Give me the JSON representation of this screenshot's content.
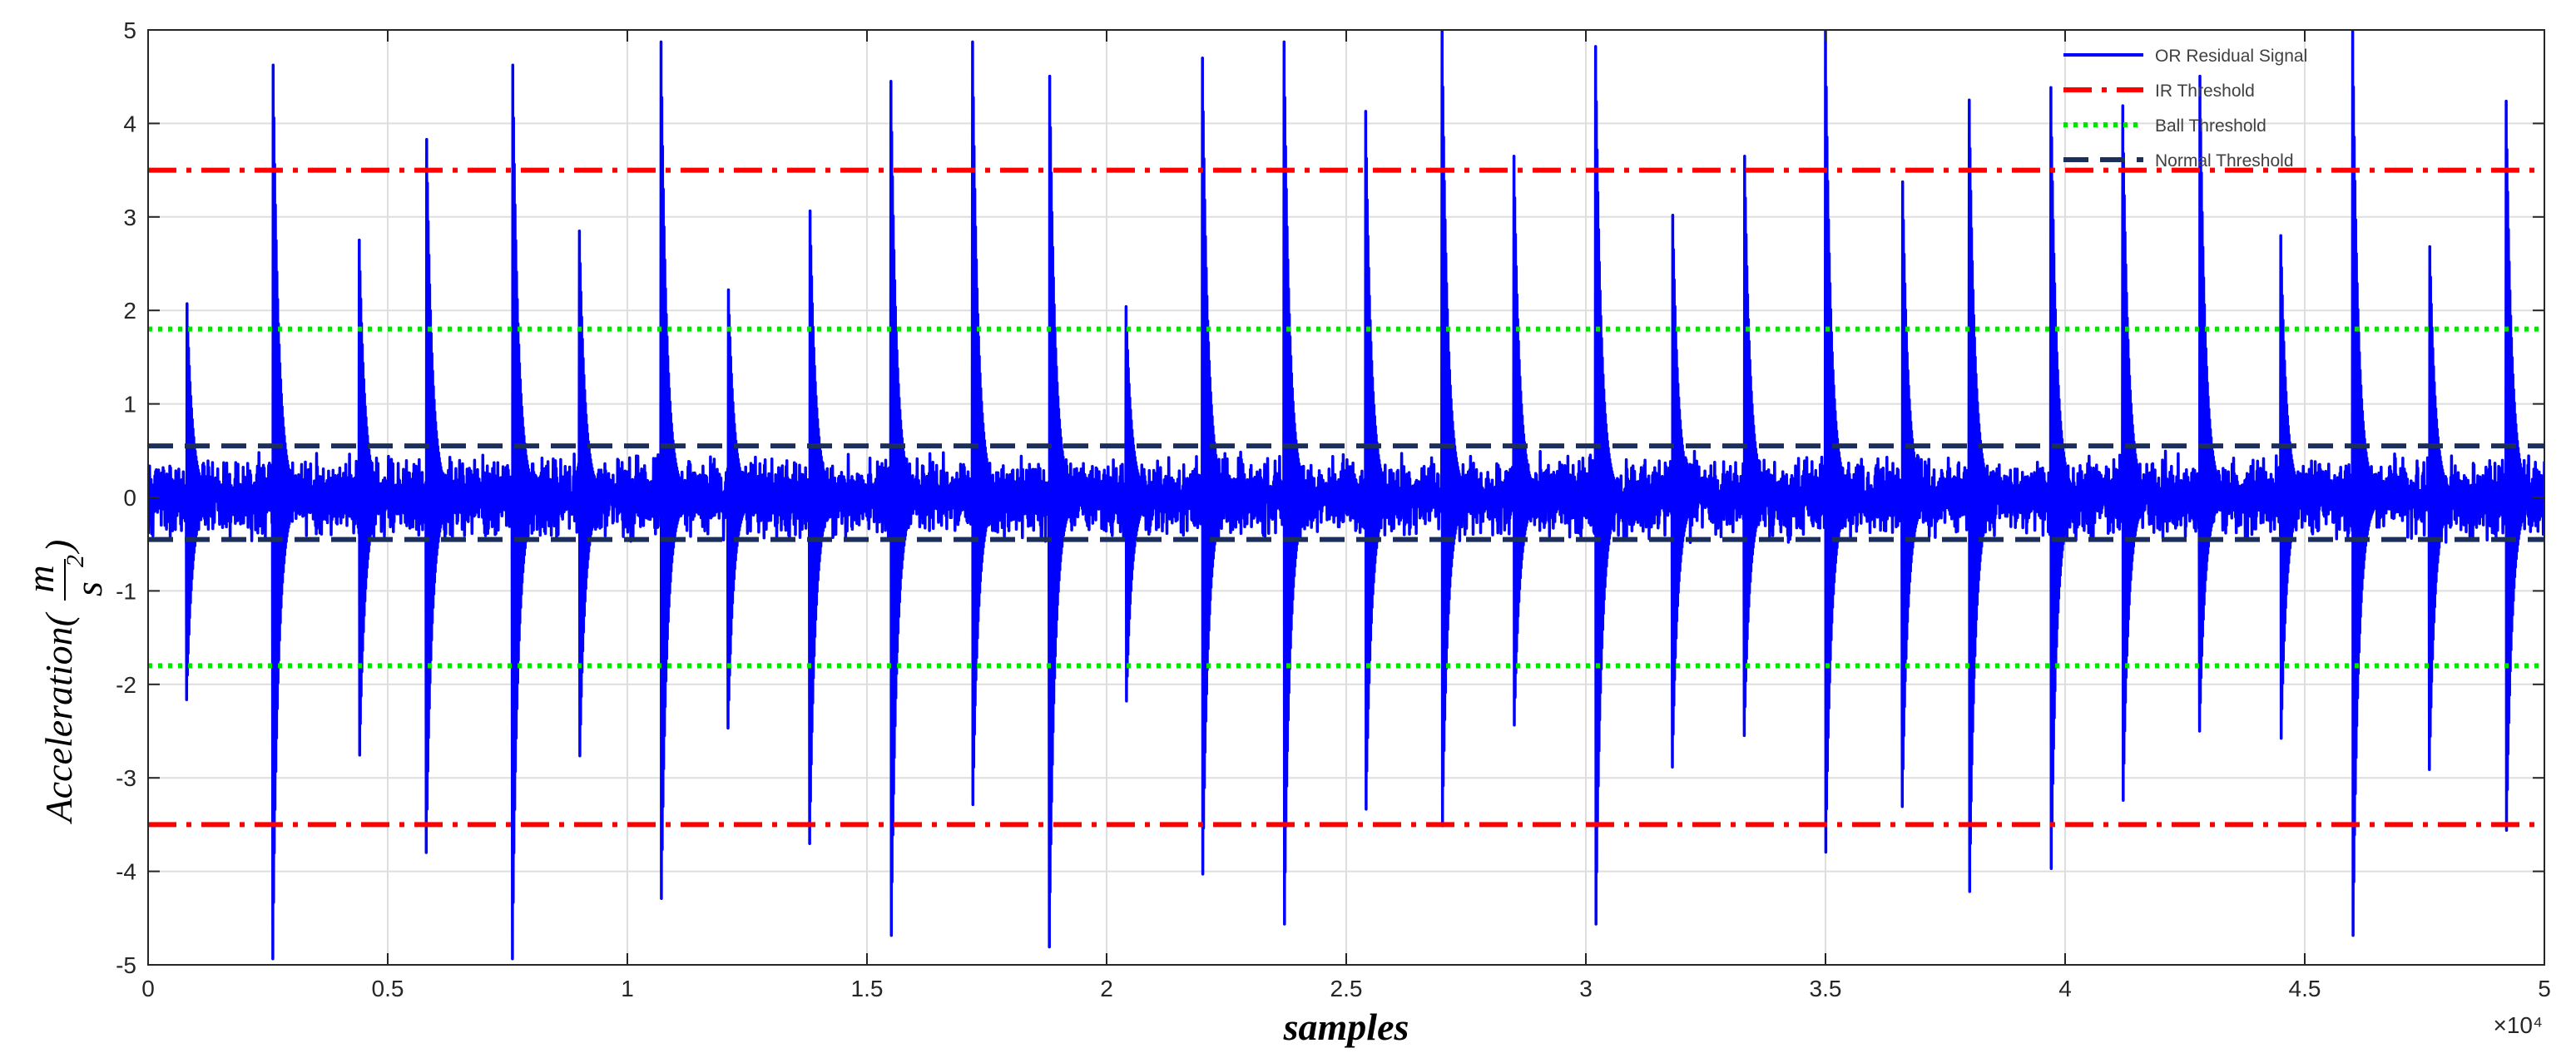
{
  "chart_data": {
    "type": "line",
    "xlabel": "samples",
    "ylabel": "Acceleration(m/s²)",
    "ylabel_parts": {
      "prefix": "Acceleration(",
      "numerator": "m",
      "denominator": "s",
      "exponent": "2",
      "suffix": ")"
    },
    "x_exponent_label": "×10⁴",
    "xlim": [
      0,
      5
    ],
    "ylim": [
      -5,
      5
    ],
    "x_ticks": [
      "0",
      "0.5",
      "1",
      "1.5",
      "2",
      "2.5",
      "3",
      "3.5",
      "4",
      "4.5",
      "5"
    ],
    "y_ticks": [
      "-5",
      "-4",
      "-3",
      "-2",
      "-1",
      "0",
      "1",
      "2",
      "3",
      "4",
      "5"
    ],
    "grid": true,
    "legend_position": "top-right",
    "series": [
      {
        "name": "OR Residual Signal",
        "style": "solid",
        "color": "#0000ff",
        "noise_amplitude": 0.5,
        "impulse_x": [
          0.08,
          0.26,
          0.44,
          0.58,
          0.76,
          0.9,
          1.07,
          1.21,
          1.38,
          1.55,
          1.72,
          1.88,
          2.04,
          2.2,
          2.37,
          2.54,
          2.7,
          2.85,
          3.02,
          3.18,
          3.33,
          3.5,
          3.66,
          3.8,
          3.97,
          4.12,
          4.28,
          4.45,
          4.6,
          4.76,
          4.92
        ],
        "impulse_positive_peak": [
          2.3,
          5.0,
          2.9,
          4.25,
          5.0,
          2.85,
          5.0,
          2.4,
          3.4,
          4.45,
          5.0,
          5.0,
          2.15,
          4.7,
          5.0,
          4.35,
          5.0,
          3.65,
          4.95,
          3.35,
          4.05,
          5.0,
          3.65,
          4.25,
          4.5,
          4.3,
          5.0,
          2.8,
          5.0,
          2.9,
          4.35
        ],
        "impulse_negative_peak": [
          -2.25,
          -5.0,
          -3.1,
          -3.95,
          -5.0,
          -2.95,
          -4.7,
          -2.5,
          -3.85,
          -5.0,
          -3.6,
          -5.0,
          -2.45,
          -4.3,
          -5.0,
          -3.75,
          -3.75,
          -2.6,
          -5.0,
          -3.0,
          -2.65,
          -4.05,
          -3.35,
          -4.5,
          -4.35,
          -3.55,
          -2.6,
          -2.75,
          -5.0,
          -2.95,
          -3.9
        ]
      },
      {
        "name": "IR Threshold",
        "style": "dash-dot",
        "color": "#ff0000",
        "levels": [
          3.5,
          -3.5
        ]
      },
      {
        "name": "Ball Threshold",
        "style": "dotted",
        "color": "#00e600",
        "levels": [
          1.8,
          -1.8
        ]
      },
      {
        "name": "Normal Threshold",
        "style": "dashed",
        "color": "#1c2e5a",
        "levels": [
          0.55,
          -0.45
        ]
      }
    ]
  }
}
